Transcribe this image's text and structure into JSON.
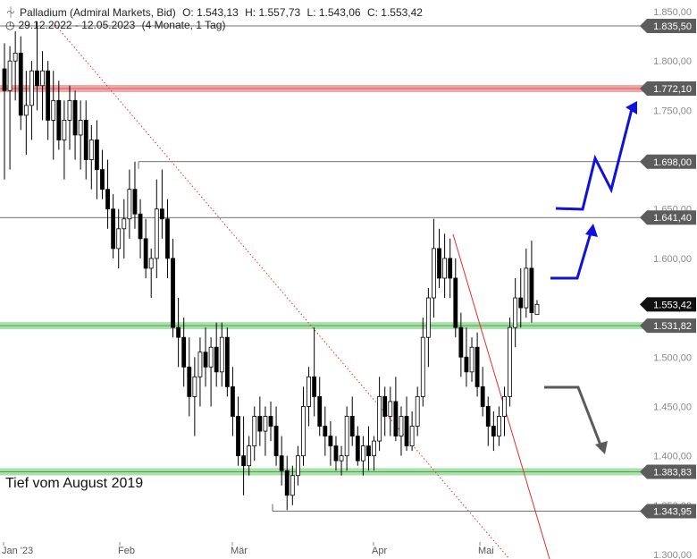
{
  "header": {
    "instrument": "Palladium (Admiral Markets, Bid)",
    "open": "O: 1.543,13",
    "high": "H: 1.557,73",
    "low": "L: 1.543,06",
    "close": "C: 1.553,42",
    "range": "29.12.2022 - 12.05.2023",
    "period": "(4 Monate, 1 Tag)"
  },
  "colors": {
    "resistance_zone": "#f2a6a6",
    "support_zone": "#a9dfa9",
    "tag_gray": "#5c5c5c",
    "tag_black": "#111111",
    "arrow_blue": "#1010e0",
    "arrow_gray": "#5a5a5a",
    "trend_red": "#e03030"
  },
  "chart_data": {
    "type": "candlestick",
    "ylim": [
      1300,
      1850
    ],
    "y_ticks": [
      1850,
      1800,
      1750,
      1700,
      1650,
      1600,
      1550,
      1500,
      1450,
      1400,
      1350,
      1300
    ],
    "y_tick_labels": [
      "1.850,00",
      "1.800,00",
      "1.750,00",
      "1.700,00",
      "1.650,00",
      "1.600,00",
      "1.550,00",
      "1.500,00",
      "1.450,00",
      "1.400,00",
      "1.350,00",
      "1.300,00"
    ],
    "x_labels": [
      "Jan '23",
      "Feb",
      "Mär",
      "Apr",
      "Mai"
    ],
    "levels": [
      {
        "value": 1835.5,
        "label": "1.835,50",
        "style": "line",
        "tag": "gray"
      },
      {
        "value": 1772.1,
        "label": "1.772,10",
        "style": "resistance-zone",
        "tag": "gray"
      },
      {
        "value": 1698.0,
        "label": "1.698,00",
        "style": "line",
        "tag": "gray"
      },
      {
        "value": 1641.4,
        "label": "1.641,40",
        "style": "line",
        "tag": "gray"
      },
      {
        "value": 1553.42,
        "label": "1.553,42",
        "style": "last-price",
        "tag": "black"
      },
      {
        "value": 1531.82,
        "label": "1.531,82",
        "style": "support-zone",
        "tag": "gray"
      },
      {
        "value": 1383.83,
        "label": "1.383,83",
        "style": "support-zone",
        "tag": "gray"
      },
      {
        "value": 1343.95,
        "label": "1.343,95",
        "style": "line",
        "tag": "gray"
      }
    ],
    "annotation": "Tief vom August 2019",
    "candles": [
      {
        "o": 1792,
        "h": 1818,
        "l": 1680,
        "c": 1770
      },
      {
        "o": 1770,
        "h": 1815,
        "l": 1690,
        "c": 1800
      },
      {
        "o": 1800,
        "h": 1830,
        "l": 1760,
        "c": 1808
      },
      {
        "o": 1808,
        "h": 1825,
        "l": 1730,
        "c": 1745
      },
      {
        "o": 1745,
        "h": 1790,
        "l": 1705,
        "c": 1755
      },
      {
        "o": 1755,
        "h": 1800,
        "l": 1720,
        "c": 1790
      },
      {
        "o": 1790,
        "h": 1840,
        "l": 1750,
        "c": 1775
      },
      {
        "o": 1775,
        "h": 1810,
        "l": 1740,
        "c": 1790
      },
      {
        "o": 1790,
        "h": 1800,
        "l": 1720,
        "c": 1740
      },
      {
        "o": 1740,
        "h": 1790,
        "l": 1700,
        "c": 1760
      },
      {
        "o": 1760,
        "h": 1780,
        "l": 1710,
        "c": 1720
      },
      {
        "o": 1720,
        "h": 1760,
        "l": 1680,
        "c": 1740
      },
      {
        "o": 1740,
        "h": 1775,
        "l": 1710,
        "c": 1760
      },
      {
        "o": 1760,
        "h": 1770,
        "l": 1700,
        "c": 1725
      },
      {
        "o": 1725,
        "h": 1760,
        "l": 1690,
        "c": 1740
      },
      {
        "o": 1740,
        "h": 1760,
        "l": 1680,
        "c": 1700
      },
      {
        "o": 1700,
        "h": 1735,
        "l": 1670,
        "c": 1720
      },
      {
        "o": 1720,
        "h": 1740,
        "l": 1660,
        "c": 1690
      },
      {
        "o": 1690,
        "h": 1710,
        "l": 1660,
        "c": 1670
      },
      {
        "o": 1670,
        "h": 1700,
        "l": 1630,
        "c": 1650
      },
      {
        "o": 1650,
        "h": 1665,
        "l": 1600,
        "c": 1610
      },
      {
        "o": 1610,
        "h": 1650,
        "l": 1590,
        "c": 1630
      },
      {
        "o": 1630,
        "h": 1660,
        "l": 1600,
        "c": 1640
      },
      {
        "o": 1640,
        "h": 1690,
        "l": 1620,
        "c": 1670
      },
      {
        "o": 1670,
        "h": 1698,
        "l": 1630,
        "c": 1645
      },
      {
        "o": 1645,
        "h": 1660,
        "l": 1600,
        "c": 1620
      },
      {
        "o": 1620,
        "h": 1640,
        "l": 1580,
        "c": 1590
      },
      {
        "o": 1590,
        "h": 1610,
        "l": 1560,
        "c": 1600
      },
      {
        "o": 1600,
        "h": 1680,
        "l": 1580,
        "c": 1650
      },
      {
        "o": 1650,
        "h": 1690,
        "l": 1620,
        "c": 1640
      },
      {
        "o": 1640,
        "h": 1660,
        "l": 1580,
        "c": 1600
      },
      {
        "o": 1600,
        "h": 1620,
        "l": 1520,
        "c": 1530
      },
      {
        "o": 1530,
        "h": 1560,
        "l": 1490,
        "c": 1520
      },
      {
        "o": 1520,
        "h": 1540,
        "l": 1470,
        "c": 1490
      },
      {
        "o": 1490,
        "h": 1520,
        "l": 1440,
        "c": 1460
      },
      {
        "o": 1460,
        "h": 1500,
        "l": 1420,
        "c": 1480
      },
      {
        "o": 1480,
        "h": 1520,
        "l": 1450,
        "c": 1505
      },
      {
        "o": 1505,
        "h": 1530,
        "l": 1470,
        "c": 1490
      },
      {
        "o": 1490,
        "h": 1520,
        "l": 1450,
        "c": 1510
      },
      {
        "o": 1510,
        "h": 1535,
        "l": 1470,
        "c": 1485
      },
      {
        "o": 1485,
        "h": 1535,
        "l": 1470,
        "c": 1520
      },
      {
        "o": 1520,
        "h": 1530,
        "l": 1460,
        "c": 1470
      },
      {
        "o": 1470,
        "h": 1490,
        "l": 1420,
        "c": 1440
      },
      {
        "o": 1440,
        "h": 1460,
        "l": 1390,
        "c": 1400
      },
      {
        "o": 1400,
        "h": 1440,
        "l": 1360,
        "c": 1390
      },
      {
        "o": 1390,
        "h": 1420,
        "l": 1380,
        "c": 1410
      },
      {
        "o": 1410,
        "h": 1450,
        "l": 1395,
        "c": 1440
      },
      {
        "o": 1440,
        "h": 1460,
        "l": 1410,
        "c": 1425
      },
      {
        "o": 1425,
        "h": 1450,
        "l": 1400,
        "c": 1440
      },
      {
        "o": 1440,
        "h": 1455,
        "l": 1415,
        "c": 1430
      },
      {
        "o": 1430,
        "h": 1450,
        "l": 1390,
        "c": 1400
      },
      {
        "o": 1400,
        "h": 1420,
        "l": 1370,
        "c": 1385
      },
      {
        "o": 1385,
        "h": 1400,
        "l": 1345,
        "c": 1360
      },
      {
        "o": 1360,
        "h": 1390,
        "l": 1350,
        "c": 1380
      },
      {
        "o": 1380,
        "h": 1410,
        "l": 1370,
        "c": 1400
      },
      {
        "o": 1400,
        "h": 1470,
        "l": 1390,
        "c": 1450
      },
      {
        "o": 1450,
        "h": 1490,
        "l": 1430,
        "c": 1480
      },
      {
        "o": 1480,
        "h": 1530,
        "l": 1440,
        "c": 1460
      },
      {
        "o": 1460,
        "h": 1480,
        "l": 1420,
        "c": 1430
      },
      {
        "o": 1430,
        "h": 1450,
        "l": 1400,
        "c": 1420
      },
      {
        "o": 1420,
        "h": 1435,
        "l": 1390,
        "c": 1410
      },
      {
        "o": 1410,
        "h": 1420,
        "l": 1385,
        "c": 1395
      },
      {
        "o": 1395,
        "h": 1410,
        "l": 1380,
        "c": 1400
      },
      {
        "o": 1400,
        "h": 1450,
        "l": 1385,
        "c": 1440
      },
      {
        "o": 1440,
        "h": 1460,
        "l": 1410,
        "c": 1420
      },
      {
        "o": 1420,
        "h": 1430,
        "l": 1390,
        "c": 1395
      },
      {
        "o": 1395,
        "h": 1420,
        "l": 1380,
        "c": 1410
      },
      {
        "o": 1410,
        "h": 1430,
        "l": 1385,
        "c": 1400
      },
      {
        "o": 1400,
        "h": 1420,
        "l": 1385,
        "c": 1415
      },
      {
        "o": 1415,
        "h": 1480,
        "l": 1405,
        "c": 1460
      },
      {
        "o": 1460,
        "h": 1470,
        "l": 1420,
        "c": 1440
      },
      {
        "o": 1440,
        "h": 1470,
        "l": 1420,
        "c": 1455
      },
      {
        "o": 1455,
        "h": 1480,
        "l": 1415,
        "c": 1420
      },
      {
        "o": 1420,
        "h": 1450,
        "l": 1400,
        "c": 1440
      },
      {
        "o": 1440,
        "h": 1460,
        "l": 1405,
        "c": 1410
      },
      {
        "o": 1410,
        "h": 1445,
        "l": 1405,
        "c": 1430
      },
      {
        "o": 1430,
        "h": 1470,
        "l": 1420,
        "c": 1460
      },
      {
        "o": 1460,
        "h": 1540,
        "l": 1450,
        "c": 1520
      },
      {
        "o": 1520,
        "h": 1570,
        "l": 1490,
        "c": 1560
      },
      {
        "o": 1560,
        "h": 1640,
        "l": 1540,
        "c": 1610
      },
      {
        "o": 1610,
        "h": 1630,
        "l": 1570,
        "c": 1580
      },
      {
        "o": 1580,
        "h": 1625,
        "l": 1560,
        "c": 1600
      },
      {
        "o": 1600,
        "h": 1620,
        "l": 1560,
        "c": 1580
      },
      {
        "o": 1580,
        "h": 1600,
        "l": 1520,
        "c": 1530
      },
      {
        "o": 1530,
        "h": 1545,
        "l": 1480,
        "c": 1500
      },
      {
        "o": 1500,
        "h": 1530,
        "l": 1470,
        "c": 1485
      },
      {
        "o": 1485,
        "h": 1520,
        "l": 1475,
        "c": 1510
      },
      {
        "o": 1510,
        "h": 1525,
        "l": 1460,
        "c": 1470
      },
      {
        "o": 1470,
        "h": 1490,
        "l": 1440,
        "c": 1450
      },
      {
        "o": 1450,
        "h": 1460,
        "l": 1410,
        "c": 1430
      },
      {
        "o": 1430,
        "h": 1445,
        "l": 1405,
        "c": 1420
      },
      {
        "o": 1420,
        "h": 1450,
        "l": 1410,
        "c": 1440
      },
      {
        "o": 1440,
        "h": 1470,
        "l": 1420,
        "c": 1460
      },
      {
        "o": 1460,
        "h": 1540,
        "l": 1450,
        "c": 1530
      },
      {
        "o": 1530,
        "h": 1580,
        "l": 1510,
        "c": 1560
      },
      {
        "o": 1560,
        "h": 1590,
        "l": 1530,
        "c": 1550
      },
      {
        "o": 1550,
        "h": 1610,
        "l": 1540,
        "c": 1590
      },
      {
        "o": 1590,
        "h": 1618,
        "l": 1535,
        "c": 1545
      },
      {
        "o": 1543.13,
        "h": 1557.73,
        "l": 1543.06,
        "c": 1553.42
      }
    ]
  }
}
